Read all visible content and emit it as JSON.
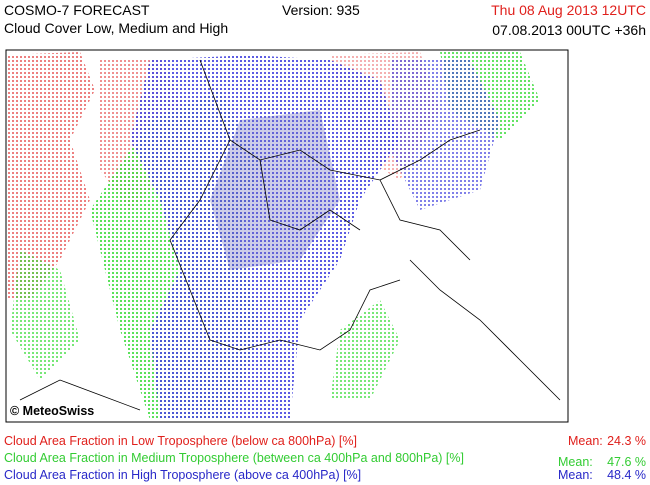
{
  "header": {
    "title": "COSMO-7 FORECAST",
    "subtitle": "Cloud Cover Low, Medium and High",
    "version": "Version: 935",
    "valid_time": "Thu 08 Aug 2013 12UTC",
    "run_time": "07.08.2013 00UTC +36h"
  },
  "map": {
    "copyright": "© MeteoSwiss"
  },
  "legend": [
    {
      "label": "Cloud Area Fraction in Low Troposphere (below ca 800hPa) [%]",
      "mean_label": "Mean:",
      "mean": "24.3 %"
    },
    {
      "label": "Cloud Area Fraction in Medium Troposphere (between ca 400hPa and 800hPa) [%]",
      "mean_label": "Mean:",
      "mean": "47.6 %"
    },
    {
      "label": "Cloud Area Fraction in High Troposphere (above ca 400hPa) [%]",
      "mean_label": "Mean:",
      "mean": "48.4 %"
    }
  ]
}
